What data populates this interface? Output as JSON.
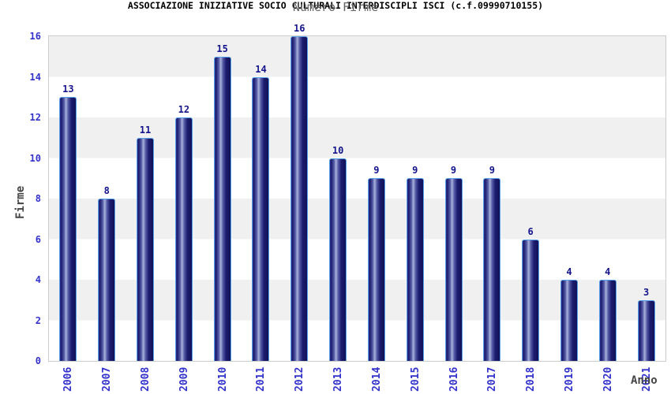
{
  "title": "ASSOCIAZIONE INIZIATIVE SOCIO CULTURALI INTERDISCIPLI ISCI (c.f.09990710155)",
  "subtitle": "Numero Firme",
  "chart_data": {
    "type": "bar",
    "title": "ASSOCIAZIONE INIZIATIVE SOCIO CULTURALI INTERDISCIPLI ISCI (c.f.09990710155)",
    "subtitle": "Numero Firme",
    "xlabel": "Anno",
    "ylabel": "Firme",
    "categories": [
      "2006",
      "2007",
      "2008",
      "2009",
      "2010",
      "2011",
      "2012",
      "2013",
      "2014",
      "2015",
      "2016",
      "2017",
      "2018",
      "2019",
      "2020",
      "2021"
    ],
    "values": [
      13,
      8,
      11,
      12,
      15,
      14,
      16,
      10,
      9,
      9,
      9,
      9,
      6,
      4,
      4,
      3
    ],
    "ylim": [
      0,
      16
    ],
    "ytick_step": 2,
    "grid": "horizontal-alternating-bands",
    "band_order_from_top": [
      "gray",
      "white"
    ],
    "legend": "none",
    "bar_labels_shown": true,
    "x_tick_rotation_deg": -90
  },
  "colors": {
    "title": "#000000",
    "subtitle": "#666666",
    "axis_title": "#444444",
    "tick_label": "#3333cc",
    "value_label": "#14148c",
    "plot_border": "#cccccc",
    "band_gray": "#f0f0f0",
    "band_white": "#ffffff",
    "bar_border": "#55a0e8",
    "bar_edge": "#31318e",
    "bar_dark": "#1c1c6e",
    "bar_mid": "#555ca6",
    "bar_highlight": "#abb3dc",
    "bar_darkest": "#121258"
  }
}
